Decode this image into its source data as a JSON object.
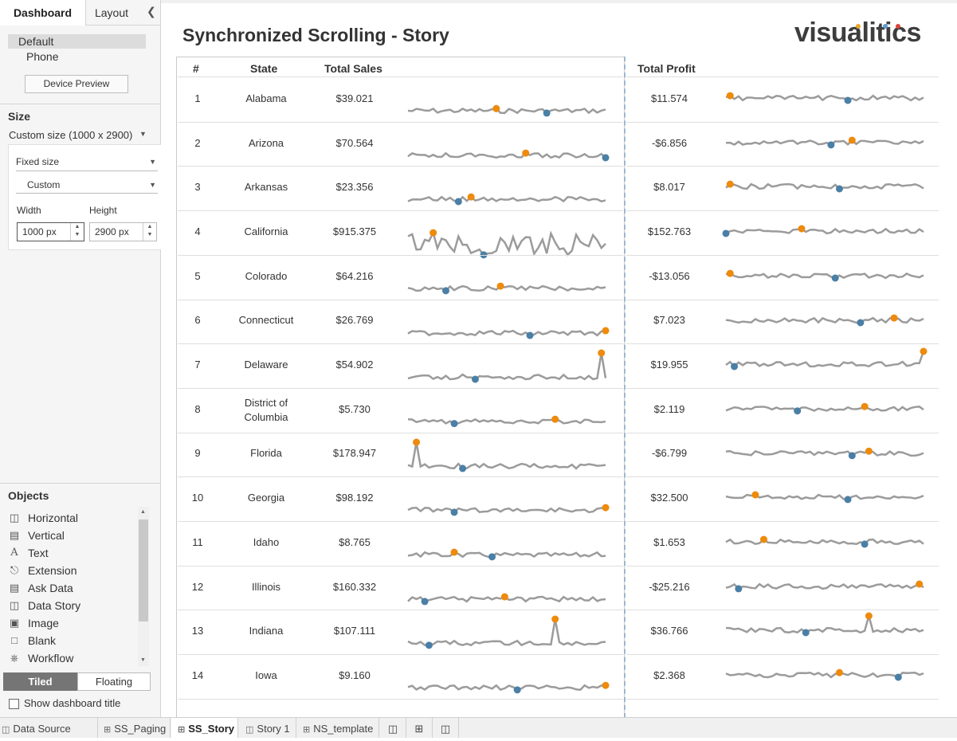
{
  "sidebar": {
    "tabs": {
      "dashboard": "Dashboard",
      "layout": "Layout"
    },
    "devices": {
      "default": "Default",
      "phone": "Phone"
    },
    "device_preview_button": "Device Preview",
    "size": {
      "title": "Size",
      "dropdown": "Custom size (1000 x 2900)",
      "mode": "Fixed size",
      "preset": "Custom",
      "width_label": "Width",
      "height_label": "Height",
      "width_value": "1000 px",
      "height_value": "2900 px"
    },
    "objects": {
      "title": "Objects",
      "items": [
        {
          "label": "Horizontal",
          "icon": "horizontal-container-icon"
        },
        {
          "label": "Vertical",
          "icon": "vertical-container-icon"
        },
        {
          "label": "Text",
          "icon": "text-icon"
        },
        {
          "label": "Extension",
          "icon": "extension-icon"
        },
        {
          "label": "Ask Data",
          "icon": "ask-data-icon"
        },
        {
          "label": "Data Story",
          "icon": "data-story-icon"
        },
        {
          "label": "Image",
          "icon": "image-icon"
        },
        {
          "label": "Blank",
          "icon": "blank-icon"
        },
        {
          "label": "Workflow",
          "icon": "workflow-icon"
        }
      ]
    },
    "tiled": "Tiled",
    "floating": "Floating",
    "show_title": "Show dashboard title"
  },
  "dashboard": {
    "title": "Synchronized Scrolling - Story",
    "logo": "visualitics",
    "headers": {
      "num": "#",
      "state": "State",
      "sales": "Total Sales",
      "profit": "Total Profit"
    },
    "colors": {
      "line": "#9b9b9b",
      "max_dot": "#ee8a0c",
      "min_dot": "#4a7fa6"
    },
    "rows": [
      {
        "num": "1",
        "state": "Alabama",
        "sales": "$39.021",
        "profit": "$11.574"
      },
      {
        "num": "2",
        "state": "Arizona",
        "sales": "$70.564",
        "profit": "-$6.856"
      },
      {
        "num": "3",
        "state": "Arkansas",
        "sales": "$23.356",
        "profit": "$8.017"
      },
      {
        "num": "4",
        "state": "California",
        "sales": "$915.375",
        "profit": "$152.763"
      },
      {
        "num": "5",
        "state": "Colorado",
        "sales": "$64.216",
        "profit": "-$13.056"
      },
      {
        "num": "6",
        "state": "Connecticut",
        "sales": "$26.769",
        "profit": "$7.023"
      },
      {
        "num": "7",
        "state": "Delaware",
        "sales": "$54.902",
        "profit": "$19.955"
      },
      {
        "num": "8",
        "state": "District of Columbia",
        "sales": "$5.730",
        "profit": "$2.119"
      },
      {
        "num": "9",
        "state": "Florida",
        "sales": "$178.947",
        "profit": "-$6.799"
      },
      {
        "num": "10",
        "state": "Georgia",
        "sales": "$98.192",
        "profit": "$32.500"
      },
      {
        "num": "11",
        "state": "Idaho",
        "sales": "$8.765",
        "profit": "$1.653"
      },
      {
        "num": "12",
        "state": "Illinois",
        "sales": "$160.332",
        "profit": "-$25.216"
      },
      {
        "num": "13",
        "state": "Indiana",
        "sales": "$107.111",
        "profit": "$36.766"
      },
      {
        "num": "14",
        "state": "Iowa",
        "sales": "$9.160",
        "profit": "$2.368"
      }
    ]
  },
  "bottom_tabs": [
    {
      "label": "Data Source",
      "icon": "data-source-icon",
      "active": false
    },
    {
      "label": "SS_Paging",
      "icon": "dashboard-icon",
      "active": false
    },
    {
      "label": "SS_Story",
      "icon": "dashboard-icon",
      "active": true
    },
    {
      "label": "Story 1",
      "icon": "story-icon",
      "active": false
    },
    {
      "label": "NS_template",
      "icon": "dashboard-icon",
      "active": false
    }
  ],
  "bottom_actions": [
    "new-worksheet-icon",
    "new-dashboard-icon",
    "new-story-icon"
  ]
}
